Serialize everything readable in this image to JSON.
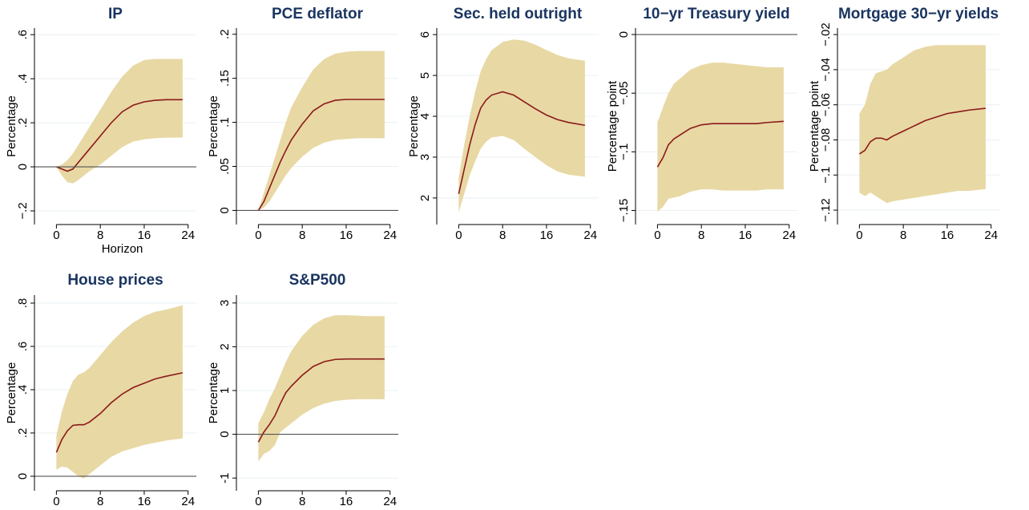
{
  "chart_data": [
    {
      "type": "line",
      "title": "IP",
      "ylabel": "Percentage",
      "xlabel": "Horizon",
      "x": [
        0,
        1,
        2,
        3,
        4,
        5,
        6,
        8,
        10,
        12,
        14,
        16,
        18,
        20,
        23
      ],
      "series": [
        {
          "color": "#8b1a1a",
          "values": [
            0,
            -0.01,
            -0.02,
            -0.01,
            0.02,
            0.05,
            0.08,
            0.14,
            0.2,
            0.25,
            0.28,
            0.295,
            0.302,
            0.305,
            0.305
          ]
        }
      ],
      "band": {
        "color": "#e8d8a4",
        "lower": [
          0,
          -0.04,
          -0.07,
          -0.075,
          -0.06,
          -0.04,
          -0.02,
          0.01,
          0.05,
          0.09,
          0.115,
          0.125,
          0.13,
          0.132,
          0.133
        ],
        "upper": [
          0,
          0.01,
          0.03,
          0.06,
          0.1,
          0.14,
          0.18,
          0.26,
          0.34,
          0.41,
          0.46,
          0.485,
          0.49,
          0.49,
          0.49
        ]
      },
      "xlim": [
        -4,
        25.5
      ],
      "xticks": [
        0,
        8,
        16,
        24
      ],
      "ylim": [
        -0.262,
        0.63
      ],
      "yticks": [
        {
          "value": -0.2,
          "label": "−.2"
        },
        0,
        {
          "value": 0.2,
          "label": ".2"
        },
        {
          "value": 0.4,
          "label": ".4"
        },
        {
          "value": 0.6,
          "label": ".6"
        }
      ],
      "grid": true
    },
    {
      "type": "line",
      "title": "PCE deflator",
      "ylabel": "Percentage",
      "x": [
        0,
        1,
        2,
        3,
        4,
        5,
        6,
        8,
        10,
        12,
        14,
        16,
        18,
        20,
        23
      ],
      "series": [
        {
          "color": "#8b1a1a",
          "values": [
            0,
            0.01,
            0.025,
            0.04,
            0.055,
            0.068,
            0.08,
            0.098,
            0.113,
            0.121,
            0.125,
            0.126,
            0.126,
            0.126,
            0.126
          ]
        }
      ],
      "band": {
        "color": "#e8d8a4",
        "lower": [
          0,
          0.003,
          0.01,
          0.02,
          0.03,
          0.04,
          0.048,
          0.061,
          0.071,
          0.077,
          0.08,
          0.081,
          0.082,
          0.082,
          0.082
        ],
        "upper": [
          0,
          0.02,
          0.04,
          0.06,
          0.08,
          0.1,
          0.117,
          0.14,
          0.16,
          0.172,
          0.178,
          0.18,
          0.181,
          0.181,
          0.181
        ]
      },
      "xlim": [
        -4,
        25.5
      ],
      "xticks": [
        0,
        8,
        16,
        24
      ],
      "ylim": [
        -0.016,
        0.207
      ],
      "yticks": [
        0,
        {
          "value": 0.05,
          "label": ".05"
        },
        {
          "value": 0.1,
          "label": ".1"
        },
        {
          "value": 0.15,
          "label": ".15"
        },
        {
          "value": 0.2,
          "label": ".2"
        }
      ],
      "grid": true
    },
    {
      "type": "line",
      "title": "Sec. held outright",
      "ylabel": "Percentage",
      "x": [
        0,
        1,
        2,
        3,
        4,
        5,
        6,
        8,
        10,
        12,
        14,
        16,
        18,
        20,
        23
      ],
      "series": [
        {
          "color": "#8b1a1a",
          "values": [
            2.1,
            2.7,
            3.3,
            3.8,
            4.2,
            4.4,
            4.52,
            4.6,
            4.52,
            4.35,
            4.18,
            4.03,
            3.92,
            3.85,
            3.78
          ]
        }
      ],
      "band": {
        "color": "#e8d8a4",
        "lower": [
          1.65,
          2.1,
          2.55,
          2.9,
          3.2,
          3.38,
          3.48,
          3.52,
          3.42,
          3.2,
          3.0,
          2.8,
          2.65,
          2.57,
          2.52
        ],
        "upper": [
          2.5,
          3.3,
          4.0,
          4.6,
          5.1,
          5.4,
          5.62,
          5.82,
          5.88,
          5.85,
          5.75,
          5.62,
          5.5,
          5.42,
          5.36
        ]
      },
      "xlim": [
        -4,
        25.5
      ],
      "xticks": [
        0,
        8,
        16,
        24
      ],
      "ylim": [
        1.35,
        6.16
      ],
      "yticks": [
        2,
        3,
        4,
        5,
        6
      ],
      "grid": true
    },
    {
      "type": "line",
      "title": "10−yr Treasury yield",
      "ylabel": "Percentage point",
      "x": [
        0,
        1,
        2,
        3,
        4,
        5,
        6,
        8,
        10,
        12,
        14,
        16,
        18,
        20,
        23
      ],
      "series": [
        {
          "color": "#8b1a1a",
          "values": [
            -0.113,
            -0.105,
            -0.094,
            -0.089,
            -0.086,
            -0.083,
            -0.08,
            -0.077,
            -0.076,
            -0.076,
            -0.076,
            -0.076,
            -0.076,
            -0.075,
            -0.074
          ]
        }
      ],
      "band": {
        "color": "#e8d8a4",
        "lower": [
          -0.151,
          -0.147,
          -0.14,
          -0.139,
          -0.138,
          -0.136,
          -0.134,
          -0.132,
          -0.132,
          -0.133,
          -0.133,
          -0.133,
          -0.133,
          -0.132,
          -0.132
        ],
        "upper": [
          -0.075,
          -0.062,
          -0.05,
          -0.042,
          -0.038,
          -0.034,
          -0.03,
          -0.026,
          -0.024,
          -0.024,
          -0.025,
          -0.026,
          -0.027,
          -0.028,
          -0.028
        ]
      },
      "xlim": [
        -4,
        25.5
      ],
      "xticks": [
        0,
        8,
        16,
        24
      ],
      "ylim": [
        -0.162,
        0.0055
      ],
      "yticks": [
        {
          "value": -0.15,
          "label": "−.15"
        },
        {
          "value": -0.1,
          "label": "−.1"
        },
        {
          "value": -0.05,
          "label": "−.05"
        },
        0
      ],
      "grid": true
    },
    {
      "type": "line",
      "title": "Mortgage 30−yr yields",
      "ylabel": "Percentage point",
      "x": [
        0,
        1,
        2,
        3,
        4,
        5,
        6,
        8,
        10,
        12,
        14,
        16,
        18,
        20,
        23
      ],
      "series": [
        {
          "color": "#8b1a1a",
          "values": [
            -0.088,
            -0.086,
            -0.081,
            -0.079,
            -0.079,
            -0.08,
            -0.078,
            -0.075,
            -0.072,
            -0.069,
            -0.067,
            -0.065,
            -0.064,
            -0.063,
            -0.062
          ]
        }
      ],
      "band": {
        "color": "#e8d8a4",
        "lower": [
          -0.11,
          -0.112,
          -0.11,
          -0.112,
          -0.114,
          -0.116,
          -0.115,
          -0.114,
          -0.113,
          -0.112,
          -0.111,
          -0.11,
          -0.109,
          -0.109,
          -0.108
        ],
        "upper": [
          -0.065,
          -0.06,
          -0.048,
          -0.042,
          -0.041,
          -0.04,
          -0.037,
          -0.033,
          -0.029,
          -0.027,
          -0.026,
          -0.026,
          -0.026,
          -0.026,
          -0.026
        ]
      },
      "xlim": [
        -4,
        25.5
      ],
      "xticks": [
        0,
        8,
        16,
        24
      ],
      "ylim": [
        -0.1282,
        -0.0163
      ],
      "yticks": [
        {
          "value": -0.12,
          "label": "−.12"
        },
        {
          "value": -0.1,
          "label": "−.1"
        },
        {
          "value": -0.08,
          "label": "−.08"
        },
        {
          "value": -0.06,
          "label": "−.06"
        },
        {
          "value": -0.04,
          "label": "−.04"
        },
        {
          "value": -0.02,
          "label": "−.02"
        }
      ],
      "grid": true
    },
    {
      "type": "line",
      "title": "House prices",
      "ylabel": "Percentage",
      "x": [
        0,
        1,
        2,
        3,
        4,
        5,
        6,
        8,
        10,
        12,
        14,
        16,
        18,
        20,
        23
      ],
      "series": [
        {
          "color": "#8b1a1a",
          "values": [
            0.11,
            0.17,
            0.21,
            0.235,
            0.238,
            0.238,
            0.25,
            0.29,
            0.34,
            0.38,
            0.41,
            0.43,
            0.45,
            0.462,
            0.478
          ]
        }
      ],
      "band": {
        "color": "#e8d8a4",
        "lower": [
          0.03,
          0.045,
          0.04,
          0.02,
          0.0,
          -0.01,
          0.01,
          0.05,
          0.09,
          0.115,
          0.13,
          0.145,
          0.155,
          0.165,
          0.175
        ],
        "upper": [
          0.19,
          0.3,
          0.38,
          0.44,
          0.47,
          0.48,
          0.5,
          0.56,
          0.62,
          0.67,
          0.71,
          0.74,
          0.76,
          0.77,
          0.79
        ]
      },
      "xlim": [
        -4,
        25.5
      ],
      "xticks": [
        0,
        8,
        16,
        24
      ],
      "ylim": [
        -0.067,
        0.837
      ],
      "yticks": [
        0,
        {
          "value": 0.2,
          "label": ".2"
        },
        {
          "value": 0.4,
          "label": ".4"
        },
        {
          "value": 0.6,
          "label": ".6"
        },
        {
          "value": 0.8,
          "label": ".8"
        }
      ],
      "grid": true
    },
    {
      "type": "line",
      "title": "S&P500",
      "ylabel": "Percentage",
      "x": [
        0,
        1,
        2,
        3,
        4,
        5,
        6,
        8,
        10,
        12,
        14,
        16,
        18,
        20,
        23
      ],
      "series": [
        {
          "color": "#8b1a1a",
          "values": [
            -0.18,
            0.05,
            0.22,
            0.42,
            0.7,
            0.95,
            1.1,
            1.35,
            1.55,
            1.66,
            1.71,
            1.72,
            1.72,
            1.72,
            1.72
          ]
        }
      ],
      "band": {
        "color": "#e8d8a4",
        "lower": [
          -0.62,
          -0.45,
          -0.38,
          -0.25,
          0.05,
          0.15,
          0.25,
          0.45,
          0.6,
          0.7,
          0.76,
          0.79,
          0.8,
          0.8,
          0.8
        ],
        "upper": [
          0.25,
          0.5,
          0.8,
          1.05,
          1.35,
          1.65,
          1.9,
          2.25,
          2.5,
          2.65,
          2.72,
          2.72,
          2.71,
          2.7,
          2.7
        ]
      },
      "xlim": [
        -4,
        25.5
      ],
      "xticks": [
        0,
        8,
        16,
        24
      ],
      "ylim": [
        -1.29,
        3.18
      ],
      "yticks": [
        -1,
        0,
        1,
        2,
        3
      ],
      "grid": true
    }
  ]
}
